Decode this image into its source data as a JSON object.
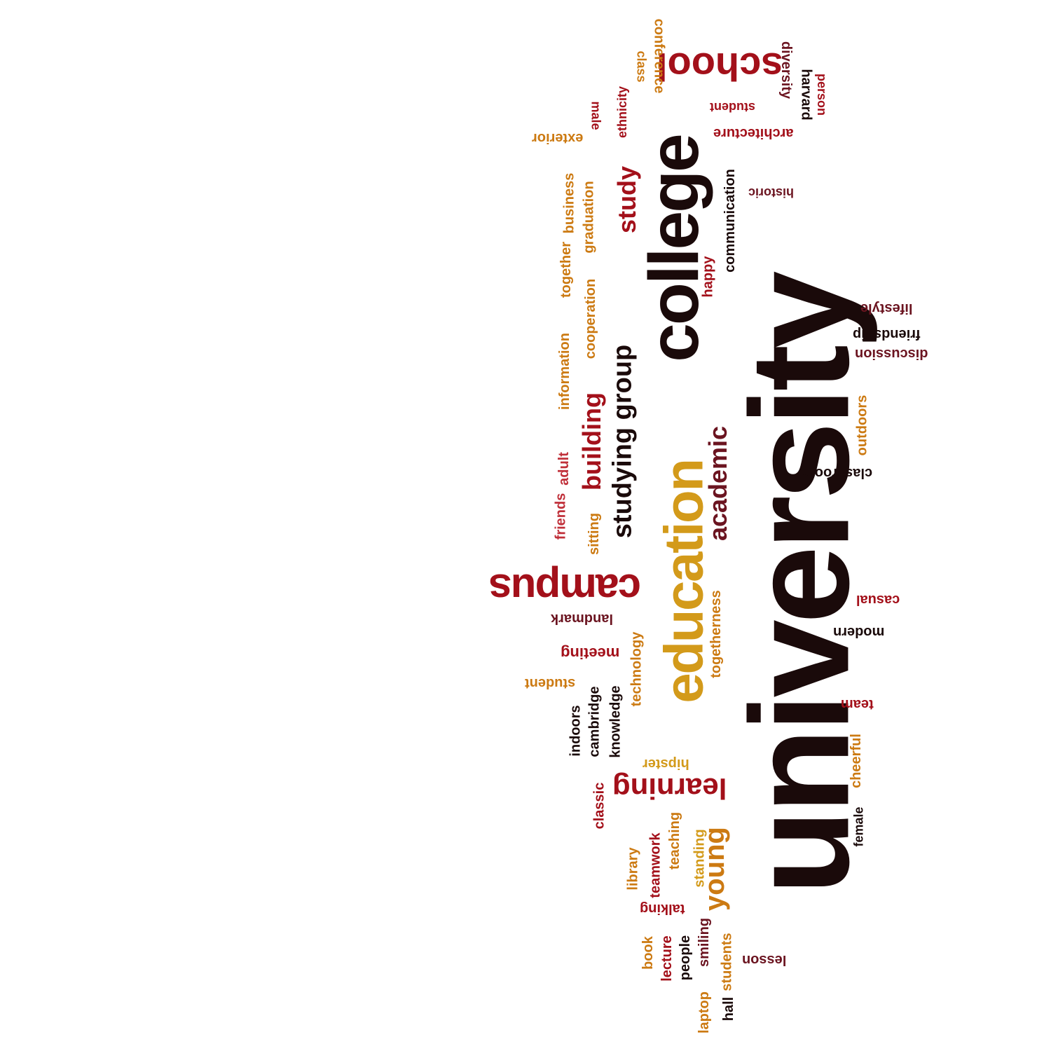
{
  "palette": {
    "dark": "#1a0a0a",
    "red": "#a3101a",
    "orange": "#cc7a12",
    "gold": "#d39a1a",
    "maroon": "#6b1420",
    "rose": "#c0303a"
  },
  "words": [
    {
      "text": "university",
      "color": "dark"
    },
    {
      "text": "college",
      "color": "dark"
    },
    {
      "text": "education",
      "color": "gold"
    },
    {
      "text": "campus",
      "color": "red"
    },
    {
      "text": "school",
      "color": "red"
    },
    {
      "text": "studying group",
      "color": "dark"
    },
    {
      "text": "academic",
      "color": "maroon"
    },
    {
      "text": "building",
      "color": "red"
    },
    {
      "text": "study",
      "color": "red"
    },
    {
      "text": "learning",
      "color": "red"
    },
    {
      "text": "young",
      "color": "orange"
    },
    {
      "text": "conference",
      "color": "orange"
    },
    {
      "text": "class",
      "color": "orange"
    },
    {
      "text": "ethnicity",
      "color": "red"
    },
    {
      "text": "male",
      "color": "red"
    },
    {
      "text": "exterior",
      "color": "orange"
    },
    {
      "text": "student",
      "color": "red"
    },
    {
      "text": "architecture",
      "color": "red"
    },
    {
      "text": "diversity",
      "color": "maroon"
    },
    {
      "text": "harvard",
      "color": "dark"
    },
    {
      "text": "person",
      "color": "red"
    },
    {
      "text": "historic",
      "color": "maroon"
    },
    {
      "text": "communication",
      "color": "dark"
    },
    {
      "text": "happy",
      "color": "red"
    },
    {
      "text": "business",
      "color": "orange"
    },
    {
      "text": "graduation",
      "color": "orange"
    },
    {
      "text": "together",
      "color": "orange"
    },
    {
      "text": "cooperation",
      "color": "orange"
    },
    {
      "text": "information",
      "color": "orange"
    },
    {
      "text": "lifestyle",
      "color": "maroon"
    },
    {
      "text": "friendship",
      "color": "dark"
    },
    {
      "text": "discussion",
      "color": "maroon"
    },
    {
      "text": "outdoors",
      "color": "orange"
    },
    {
      "text": "classroom",
      "color": "dark"
    },
    {
      "text": "friends",
      "color": "rose"
    },
    {
      "text": "adult",
      "color": "rose"
    },
    {
      "text": "sitting",
      "color": "orange"
    },
    {
      "text": "landmark",
      "color": "maroon"
    },
    {
      "text": "casual",
      "color": "red"
    },
    {
      "text": "modern",
      "color": "dark"
    },
    {
      "text": "meeting",
      "color": "red"
    },
    {
      "text": "technology",
      "color": "orange"
    },
    {
      "text": "togetherness",
      "color": "orange"
    },
    {
      "text": "student",
      "color": "orange"
    },
    {
      "text": "indoors",
      "color": "dark"
    },
    {
      "text": "cambridge",
      "color": "dark"
    },
    {
      "text": "knowledge",
      "color": "dark"
    },
    {
      "text": "team",
      "color": "red"
    },
    {
      "text": "hipster",
      "color": "gold"
    },
    {
      "text": "cheerful",
      "color": "orange"
    },
    {
      "text": "classic",
      "color": "red"
    },
    {
      "text": "female",
      "color": "dark"
    },
    {
      "text": "library",
      "color": "orange"
    },
    {
      "text": "teamwork",
      "color": "red"
    },
    {
      "text": "teaching",
      "color": "orange"
    },
    {
      "text": "standing",
      "color": "gold"
    },
    {
      "text": "talking",
      "color": "red"
    },
    {
      "text": "book",
      "color": "orange"
    },
    {
      "text": "lecture",
      "color": "red"
    },
    {
      "text": "people",
      "color": "dark"
    },
    {
      "text": "smiling",
      "color": "maroon"
    },
    {
      "text": "students",
      "color": "orange"
    },
    {
      "text": "lesson",
      "color": "maroon"
    },
    {
      "text": "laptop",
      "color": "orange"
    },
    {
      "text": "hall",
      "color": "dark"
    }
  ]
}
